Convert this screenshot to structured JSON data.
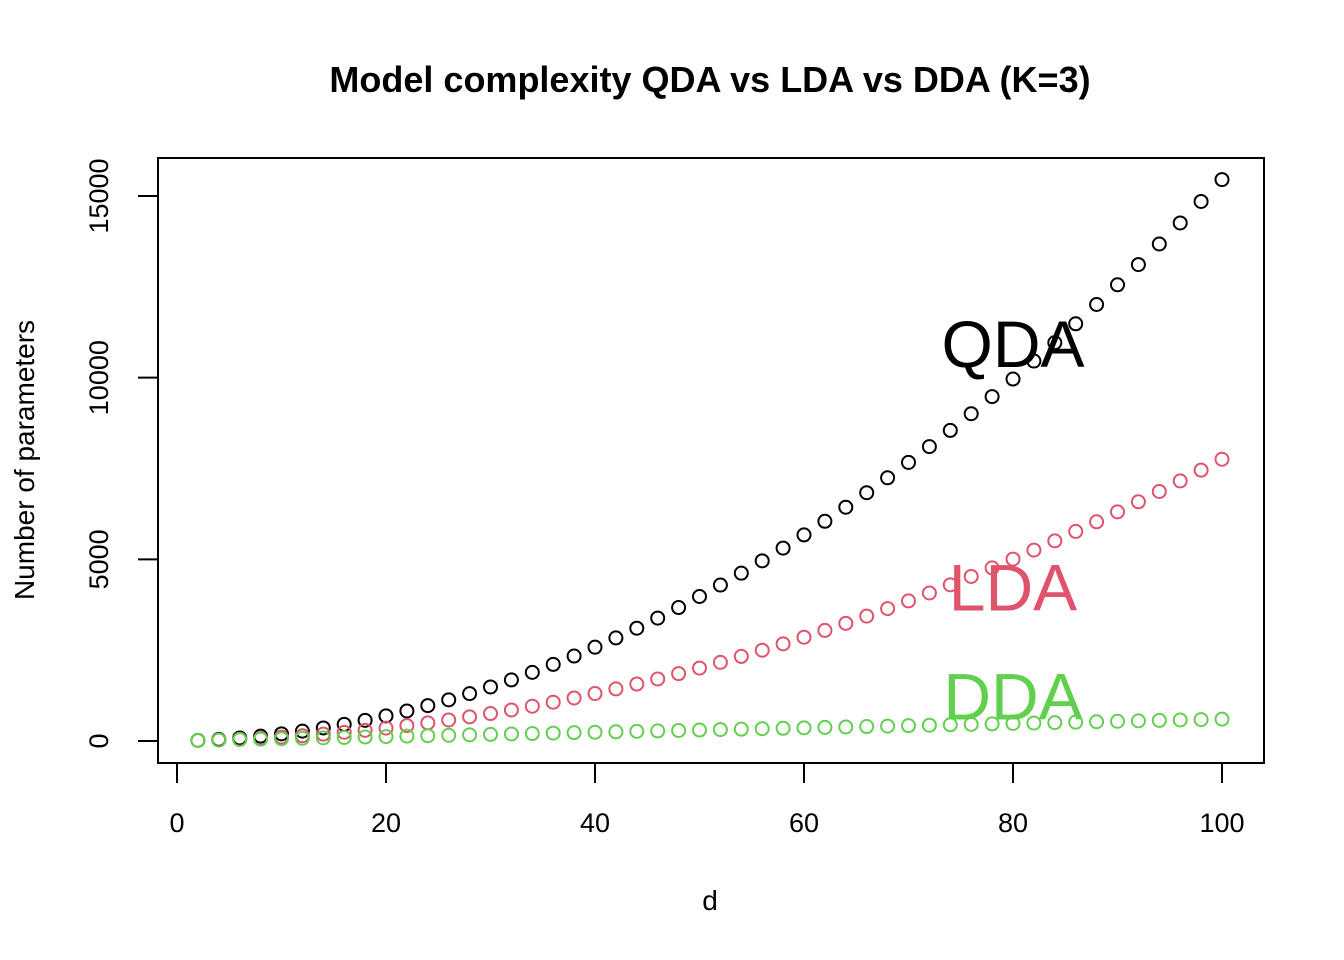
{
  "chart_data": {
    "type": "scatter",
    "title": "Model complexity QDA vs LDA vs DDA (K=3)",
    "xlabel": "d",
    "ylabel": "Number of parameters",
    "xlim": [
      0,
      100
    ],
    "ylim": [
      0,
      15500
    ],
    "xticks": [
      "0",
      "20",
      "40",
      "60",
      "80",
      "100"
    ],
    "yticks": [
      "0",
      "5000",
      "10000",
      "15000"
    ],
    "grid": false,
    "legend": "none",
    "x": [
      2,
      4,
      6,
      8,
      10,
      12,
      14,
      16,
      18,
      20,
      22,
      24,
      26,
      28,
      30,
      32,
      34,
      36,
      38,
      40,
      42,
      44,
      46,
      48,
      50,
      52,
      54,
      56,
      58,
      60,
      62,
      64,
      66,
      68,
      70,
      72,
      74,
      76,
      78,
      80,
      82,
      84,
      86,
      88,
      90,
      92,
      94,
      96,
      98,
      100
    ],
    "series": [
      {
        "name": "QDA",
        "color": "#000000",
        "values": [
          17,
          44,
          83,
          134,
          197,
          272,
          359,
          458,
          569,
          692,
          827,
          974,
          1133,
          1304,
          1487,
          1682,
          1889,
          2108,
          2339,
          2582,
          2837,
          3104,
          3383,
          3674,
          3977,
          4292,
          4619,
          4958,
          5309,
          5672,
          6047,
          6434,
          6833,
          7244,
          7667,
          8102,
          8549,
          9008,
          9479,
          9962,
          10457,
          10964,
          11483,
          12014,
          12557,
          13112,
          13679,
          14258,
          14849,
          15452
        ]
      },
      {
        "name": "LDA",
        "color": "#DF536B",
        "values": [
          14,
          28,
          48,
          74,
          106,
          144,
          188,
          238,
          294,
          356,
          424,
          498,
          578,
          664,
          756,
          854,
          958,
          1068,
          1184,
          1306,
          1434,
          1568,
          1708,
          1854,
          2006,
          2164,
          2328,
          2498,
          2674,
          2856,
          3044,
          3238,
          3438,
          3644,
          3856,
          4074,
          4298,
          4528,
          4764,
          5006,
          5254,
          5508,
          5768,
          6034,
          6306,
          6584,
          6868,
          7158,
          7454,
          7756
        ]
      },
      {
        "name": "DDA",
        "color": "#61D04F",
        "values": [
          14,
          26,
          38,
          50,
          62,
          74,
          86,
          98,
          110,
          122,
          134,
          146,
          158,
          170,
          182,
          194,
          206,
          218,
          230,
          242,
          254,
          266,
          278,
          290,
          302,
          314,
          326,
          338,
          350,
          362,
          374,
          386,
          398,
          410,
          422,
          434,
          446,
          458,
          470,
          482,
          494,
          506,
          518,
          530,
          542,
          554,
          566,
          578,
          590,
          602
        ]
      }
    ],
    "labels": [
      {
        "text": "QDA",
        "x": 80,
        "y": 10900,
        "color": "#000000"
      },
      {
        "text": "LDA",
        "x": 80,
        "y": 4200,
        "color": "#DF536B"
      },
      {
        "text": "DDA",
        "x": 80,
        "y": 1200,
        "color": "#61D04F"
      }
    ]
  }
}
